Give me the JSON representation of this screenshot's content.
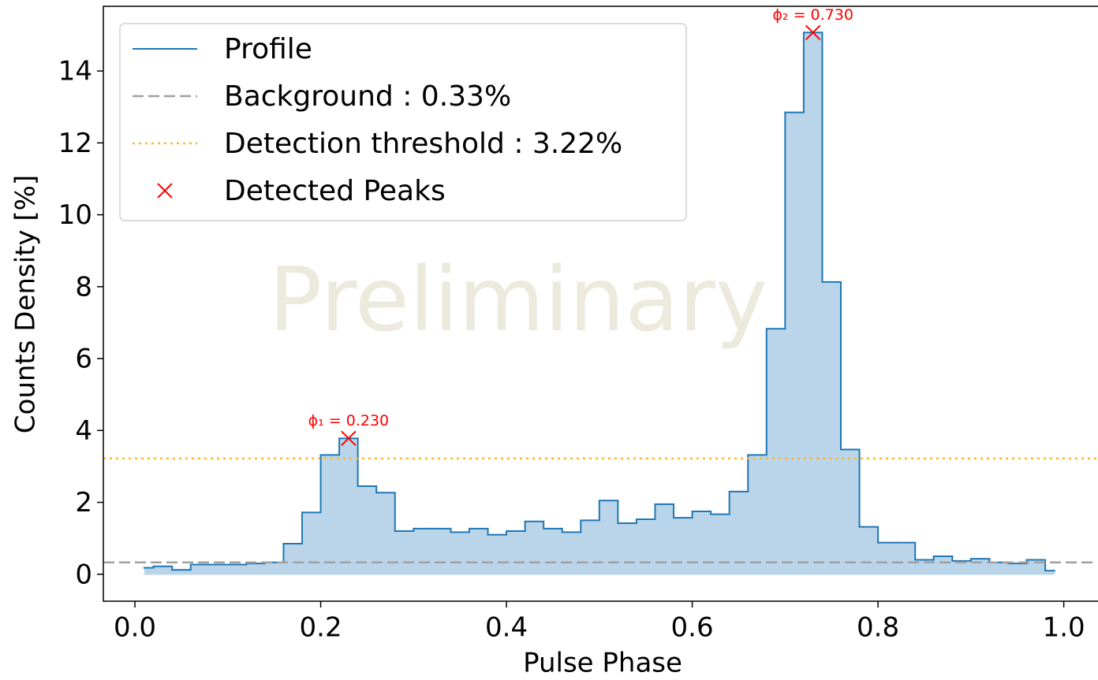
{
  "chart_data": {
    "type": "step",
    "xlabel": "Pulse Phase",
    "ylabel": "Counts Density [%]",
    "watermark": "Preliminary",
    "xlim": [
      -0.034,
      1.036
    ],
    "ylim": [
      -0.75,
      15.8
    ],
    "xticks": [
      {
        "value": 0,
        "label": "0.0"
      },
      0.2,
      0.4,
      0.6,
      0.8,
      {
        "value": 1,
        "label": "1.0"
      }
    ],
    "yticks": [
      0,
      2,
      4,
      6,
      8,
      10,
      12,
      14
    ],
    "x": [
      0.01,
      0.03,
      0.05,
      0.07,
      0.09,
      0.11,
      0.13,
      0.15,
      0.17,
      0.19,
      0.21,
      0.23,
      0.25,
      0.27,
      0.29,
      0.31,
      0.33,
      0.35,
      0.37,
      0.39,
      0.41,
      0.43,
      0.45,
      0.47,
      0.49,
      0.51,
      0.53,
      0.55,
      0.57,
      0.59,
      0.61,
      0.63,
      0.65,
      0.67,
      0.69,
      0.71,
      0.73,
      0.75,
      0.77,
      0.79,
      0.81,
      0.83,
      0.85,
      0.87,
      0.89,
      0.91,
      0.93,
      0.95,
      0.97,
      0.99
    ],
    "series": [
      {
        "name": "Profile",
        "color": "#1f77b4",
        "fill": "#bad5ea",
        "values": [
          0.18,
          0.22,
          0.12,
          0.27,
          0.27,
          0.27,
          0.3,
          0.33,
          0.85,
          1.72,
          3.32,
          3.78,
          2.45,
          2.27,
          1.2,
          1.27,
          1.27,
          1.17,
          1.27,
          1.1,
          1.2,
          1.47,
          1.27,
          1.17,
          1.5,
          2.05,
          1.42,
          1.53,
          1.95,
          1.57,
          1.75,
          1.67,
          2.3,
          3.32,
          6.83,
          12.85,
          15.07,
          8.13,
          3.47,
          1.32,
          0.88,
          0.88,
          0.4,
          0.5,
          0.37,
          0.43,
          0.33,
          0.3,
          0.4,
          0.1
        ]
      }
    ],
    "background": {
      "name": "Background : 0.33%",
      "value": 0.33,
      "color": "#a0a0a0",
      "linestyle": "dashed"
    },
    "threshold": {
      "name": "Detection threshold : 3.22%",
      "value": 3.22,
      "color": "#ffb52e",
      "linestyle": "dotted"
    },
    "peaks": {
      "name": "Detected Peaks",
      "color": "#ff0000",
      "x": [
        0.23,
        0.73
      ],
      "y": [
        3.78,
        15.07
      ],
      "labels": [
        "ϕ₁ = 0.230",
        "ϕ₂ = 0.730"
      ]
    }
  }
}
